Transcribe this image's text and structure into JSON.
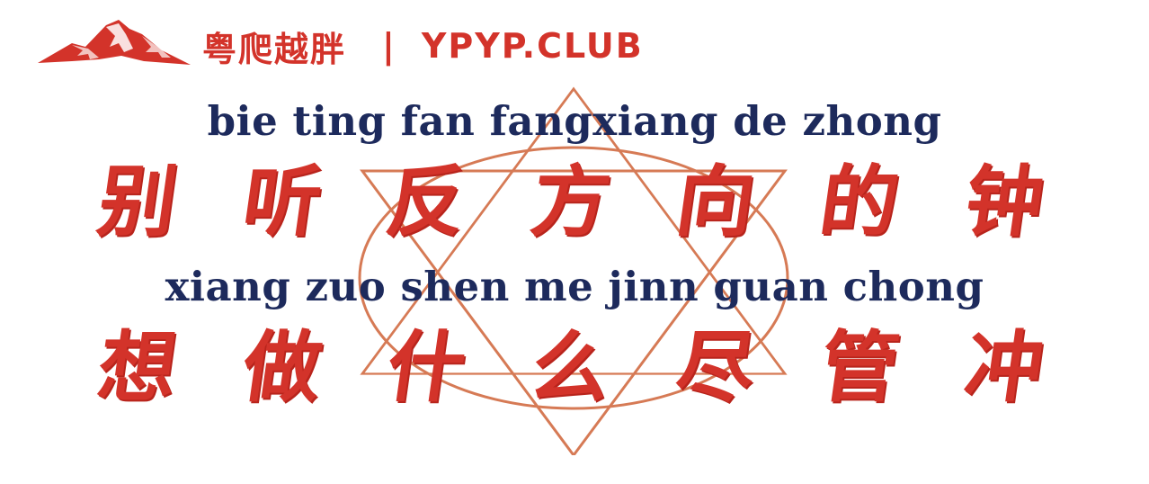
{
  "header": {
    "brand": "粤爬越胖",
    "separator": "|",
    "site": "YPYP.CLUB"
  },
  "lines": [
    {
      "pinyin": "bie ting fan fangxiang de zhong",
      "chars": [
        "别",
        "听",
        "反",
        "方",
        "向",
        "的",
        "钟"
      ]
    },
    {
      "pinyin": "xiang zuo shen me jinn guan chong",
      "chars": [
        "想",
        "做",
        "什",
        "么",
        "尽",
        "管",
        "冲"
      ]
    }
  ],
  "colors": {
    "red": "#d3332a",
    "navy": "#1d2a5c",
    "emblem": "#d67a55",
    "background": "#ffffff"
  },
  "icons": {
    "logo": "mountain-logo-icon",
    "emblem": "hexagram-circle-emblem"
  }
}
